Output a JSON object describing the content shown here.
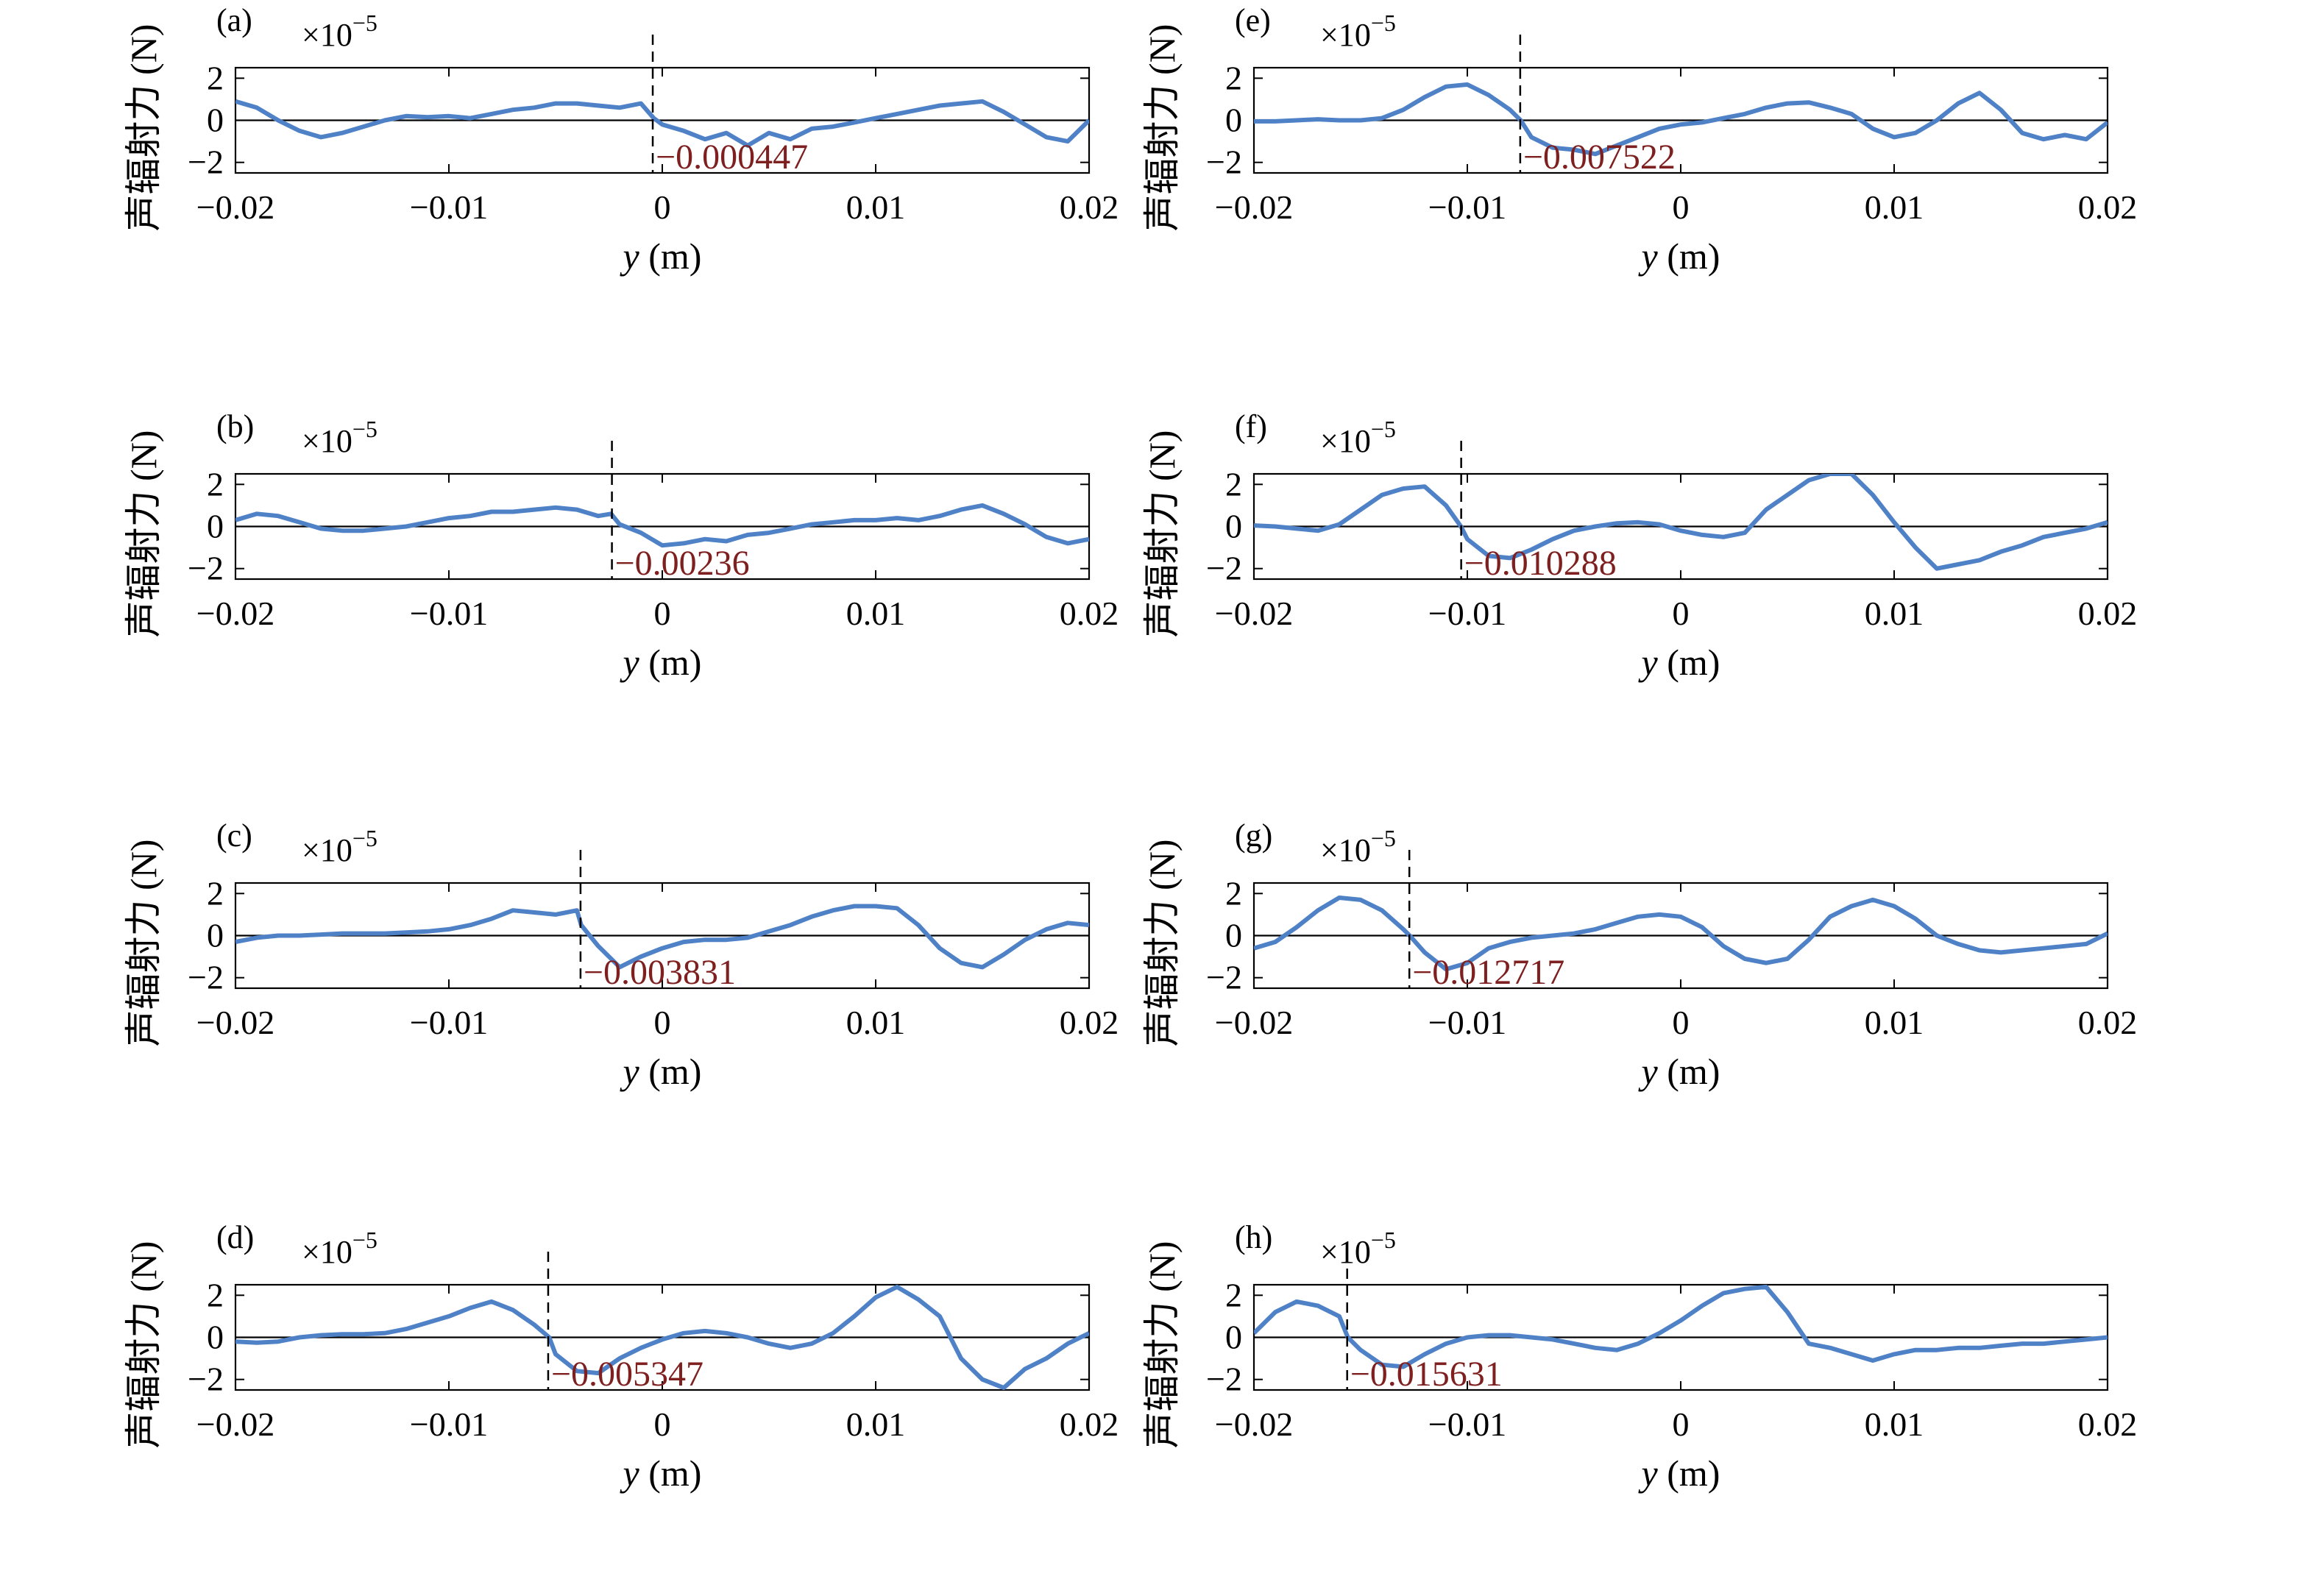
{
  "colors": {
    "series": "#4F81C7",
    "marker_label": "#7F2020",
    "axis": "#000000"
  },
  "chart_data": [
    {
      "panel": "(a)",
      "type": "line",
      "exponent": "×10",
      "exponent_power": "−5",
      "xlabel_var": "y",
      "xlabel_unit": " (m)",
      "ylabel": "声辐射力 (N)",
      "xlim": [
        -0.02,
        0.02
      ],
      "ylim": [
        -2.5,
        2.5
      ],
      "xticks": [
        "−0.02",
        "−0.01",
        "0",
        "0.01",
        "0.02"
      ],
      "yticks": [
        "−2",
        "0",
        "2"
      ],
      "marker_x": -0.000447,
      "marker_label": "−0.000447",
      "x": [
        -0.02,
        -0.019,
        -0.018,
        -0.017,
        -0.016,
        -0.015,
        -0.014,
        -0.013,
        -0.012,
        -0.011,
        -0.01,
        -0.009,
        -0.008,
        -0.007,
        -0.006,
        -0.005,
        -0.004,
        -0.003,
        -0.002,
        -0.001,
        -0.0004,
        0.0,
        0.001,
        0.002,
        0.003,
        0.004,
        0.005,
        0.006,
        0.007,
        0.008,
        0.009,
        0.01,
        0.011,
        0.012,
        0.013,
        0.014,
        0.015,
        0.016,
        0.017,
        0.018,
        0.019,
        0.02
      ],
      "y": [
        0.9,
        0.6,
        0.0,
        -0.5,
        -0.8,
        -0.6,
        -0.3,
        0.0,
        0.2,
        0.15,
        0.2,
        0.1,
        0.3,
        0.5,
        0.6,
        0.8,
        0.8,
        0.7,
        0.6,
        0.8,
        0.1,
        -0.2,
        -0.5,
        -0.9,
        -0.6,
        -1.2,
        -0.6,
        -0.9,
        -0.4,
        -0.3,
        -0.1,
        0.1,
        0.3,
        0.5,
        0.7,
        0.8,
        0.9,
        0.4,
        -0.2,
        -0.8,
        -1.0,
        0.0
      ]
    },
    {
      "panel": "(b)",
      "type": "line",
      "exponent": "×10",
      "exponent_power": "−5",
      "xlabel_var": "y",
      "xlabel_unit": " (m)",
      "ylabel": "声辐射力 (N)",
      "xlim": [
        -0.02,
        0.02
      ],
      "ylim": [
        -2.5,
        2.5
      ],
      "xticks": [
        "−0.02",
        "−0.01",
        "0",
        "0.01",
        "0.02"
      ],
      "yticks": [
        "−2",
        "0",
        "2"
      ],
      "marker_x": -0.00236,
      "marker_label": "−0.00236",
      "x": [
        -0.02,
        -0.019,
        -0.018,
        -0.017,
        -0.016,
        -0.015,
        -0.014,
        -0.013,
        -0.012,
        -0.011,
        -0.01,
        -0.009,
        -0.008,
        -0.007,
        -0.006,
        -0.005,
        -0.004,
        -0.003,
        -0.0024,
        -0.002,
        -0.001,
        0.0,
        0.001,
        0.002,
        0.003,
        0.004,
        0.005,
        0.006,
        0.007,
        0.008,
        0.009,
        0.01,
        0.011,
        0.012,
        0.013,
        0.014,
        0.015,
        0.016,
        0.017,
        0.018,
        0.019,
        0.02
      ],
      "y": [
        0.3,
        0.6,
        0.5,
        0.2,
        -0.1,
        -0.2,
        -0.2,
        -0.1,
        0.0,
        0.2,
        0.4,
        0.5,
        0.7,
        0.7,
        0.8,
        0.9,
        0.8,
        0.5,
        0.6,
        0.1,
        -0.3,
        -0.9,
        -0.8,
        -0.6,
        -0.7,
        -0.4,
        -0.3,
        -0.1,
        0.1,
        0.2,
        0.3,
        0.3,
        0.4,
        0.3,
        0.5,
        0.8,
        1.0,
        0.6,
        0.1,
        -0.5,
        -0.8,
        -0.6
      ]
    },
    {
      "panel": "(c)",
      "type": "line",
      "exponent": "×10",
      "exponent_power": "−5",
      "xlabel_var": "y",
      "xlabel_unit": " (m)",
      "ylabel": "声辐射力 (N)",
      "xlim": [
        -0.02,
        0.02
      ],
      "ylim": [
        -2.5,
        2.5
      ],
      "xticks": [
        "−0.02",
        "−0.01",
        "0",
        "0.01",
        "0.02"
      ],
      "yticks": [
        "−2",
        "0",
        "2"
      ],
      "marker_x": -0.003831,
      "marker_label": "−0.003831",
      "x": [
        -0.02,
        -0.019,
        -0.018,
        -0.017,
        -0.016,
        -0.015,
        -0.014,
        -0.013,
        -0.012,
        -0.011,
        -0.01,
        -0.009,
        -0.008,
        -0.007,
        -0.006,
        -0.005,
        -0.004,
        -0.0038,
        -0.003,
        -0.002,
        -0.001,
        0.0,
        0.001,
        0.002,
        0.003,
        0.004,
        0.005,
        0.006,
        0.007,
        0.008,
        0.009,
        0.01,
        0.011,
        0.012,
        0.013,
        0.014,
        0.015,
        0.016,
        0.017,
        0.018,
        0.019,
        0.02
      ],
      "y": [
        -0.3,
        -0.1,
        0.0,
        0.0,
        0.05,
        0.1,
        0.1,
        0.1,
        0.15,
        0.2,
        0.3,
        0.5,
        0.8,
        1.2,
        1.1,
        1.0,
        1.2,
        0.5,
        -0.5,
        -1.5,
        -1.0,
        -0.6,
        -0.3,
        -0.2,
        -0.2,
        -0.1,
        0.2,
        0.5,
        0.9,
        1.2,
        1.4,
        1.4,
        1.3,
        0.5,
        -0.6,
        -1.3,
        -1.5,
        -0.9,
        -0.2,
        0.3,
        0.6,
        0.5
      ]
    },
    {
      "panel": "(d)",
      "type": "line",
      "exponent": "×10",
      "exponent_power": "−5",
      "xlabel_var": "y",
      "xlabel_unit": " (m)",
      "ylabel": "声辐射力 (N)",
      "xlim": [
        -0.02,
        0.02
      ],
      "ylim": [
        -2.5,
        2.5
      ],
      "xticks": [
        "−0.02",
        "−0.01",
        "0",
        "0.01",
        "0.02"
      ],
      "yticks": [
        "−2",
        "0",
        "2"
      ],
      "marker_x": -0.005347,
      "marker_label": "−0.005347",
      "x": [
        -0.02,
        -0.019,
        -0.018,
        -0.017,
        -0.016,
        -0.015,
        -0.014,
        -0.013,
        -0.012,
        -0.011,
        -0.01,
        -0.009,
        -0.008,
        -0.007,
        -0.006,
        -0.0053,
        -0.005,
        -0.004,
        -0.003,
        -0.002,
        -0.001,
        0.0,
        0.001,
        0.002,
        0.003,
        0.004,
        0.005,
        0.006,
        0.007,
        0.008,
        0.009,
        0.01,
        0.011,
        0.012,
        0.013,
        0.014,
        0.015,
        0.016,
        0.017,
        0.018,
        0.019,
        0.02
      ],
      "y": [
        -0.2,
        -0.25,
        -0.2,
        0.0,
        0.1,
        0.15,
        0.15,
        0.2,
        0.4,
        0.7,
        1.0,
        1.4,
        1.7,
        1.3,
        0.6,
        0.0,
        -0.8,
        -1.6,
        -1.7,
        -1.0,
        -0.5,
        -0.1,
        0.2,
        0.3,
        0.2,
        0.0,
        -0.3,
        -0.5,
        -0.3,
        0.2,
        1.0,
        1.9,
        2.4,
        1.8,
        1.0,
        -1.0,
        -2.0,
        -2.4,
        -1.5,
        -1.0,
        -0.3,
        0.2
      ]
    },
    {
      "panel": "(e)",
      "type": "line",
      "exponent": "×10",
      "exponent_power": "−5",
      "xlabel_var": "y",
      "xlabel_unit": " (m)",
      "ylabel": "声辐射力 (N)",
      "xlim": [
        -0.02,
        0.02
      ],
      "ylim": [
        -2.5,
        2.5
      ],
      "xticks": [
        "−0.02",
        "−0.01",
        "0",
        "0.01",
        "0.02"
      ],
      "yticks": [
        "−2",
        "0",
        "2"
      ],
      "marker_x": -0.007522,
      "marker_label": "−0.007522",
      "x": [
        -0.02,
        -0.019,
        -0.018,
        -0.017,
        -0.016,
        -0.015,
        -0.014,
        -0.013,
        -0.012,
        -0.011,
        -0.01,
        -0.009,
        -0.008,
        -0.0075,
        -0.007,
        -0.006,
        -0.005,
        -0.004,
        -0.003,
        -0.002,
        -0.001,
        0.0,
        0.001,
        0.002,
        0.003,
        0.004,
        0.005,
        0.006,
        0.007,
        0.008,
        0.009,
        0.01,
        0.011,
        0.012,
        0.013,
        0.014,
        0.015,
        0.016,
        0.017,
        0.018,
        0.019,
        0.02
      ],
      "y": [
        -0.05,
        -0.05,
        0.0,
        0.05,
        0.0,
        0.0,
        0.1,
        0.5,
        1.1,
        1.6,
        1.7,
        1.2,
        0.5,
        0.0,
        -0.8,
        -1.3,
        -1.4,
        -1.6,
        -1.2,
        -0.8,
        -0.4,
        -0.2,
        -0.1,
        0.1,
        0.3,
        0.6,
        0.8,
        0.85,
        0.6,
        0.3,
        -0.4,
        -0.8,
        -0.6,
        0.0,
        0.8,
        1.3,
        0.5,
        -0.6,
        -0.9,
        -0.7,
        -0.9,
        -0.1
      ]
    },
    {
      "panel": "(f)",
      "type": "line",
      "exponent": "×10",
      "exponent_power": "−5",
      "xlabel_var": "y",
      "xlabel_unit": " (m)",
      "ylabel": "声辐射力 (N)",
      "xlim": [
        -0.02,
        0.02
      ],
      "ylim": [
        -2.5,
        2.5
      ],
      "xticks": [
        "−0.02",
        "−0.01",
        "0",
        "0.01",
        "0.02"
      ],
      "yticks": [
        "−2",
        "0",
        "2"
      ],
      "marker_x": -0.010288,
      "marker_label": "−0.010288",
      "x": [
        -0.02,
        -0.019,
        -0.018,
        -0.017,
        -0.016,
        -0.015,
        -0.014,
        -0.013,
        -0.012,
        -0.011,
        -0.0103,
        -0.01,
        -0.009,
        -0.008,
        -0.007,
        -0.006,
        -0.005,
        -0.004,
        -0.003,
        -0.002,
        -0.001,
        0.0,
        0.001,
        0.002,
        0.003,
        0.004,
        0.005,
        0.006,
        0.007,
        0.008,
        0.009,
        0.01,
        0.011,
        0.012,
        0.013,
        0.014,
        0.015,
        0.016,
        0.017,
        0.018,
        0.019,
        0.02
      ],
      "y": [
        0.05,
        0.0,
        -0.1,
        -0.2,
        0.1,
        0.8,
        1.5,
        1.8,
        1.9,
        1.0,
        0.0,
        -0.6,
        -1.4,
        -1.5,
        -1.1,
        -0.6,
        -0.2,
        0.0,
        0.15,
        0.2,
        0.1,
        -0.2,
        -0.4,
        -0.5,
        -0.3,
        0.8,
        1.5,
        2.2,
        2.5,
        2.5,
        1.5,
        0.2,
        -1.0,
        -2.0,
        -1.8,
        -1.6,
        -1.2,
        -0.9,
        -0.5,
        -0.3,
        -0.1,
        0.2
      ]
    },
    {
      "panel": "(g)",
      "type": "line",
      "exponent": "×10",
      "exponent_power": "−5",
      "xlabel_var": "y",
      "xlabel_unit": " (m)",
      "ylabel": "声辐射力 (N)",
      "xlim": [
        -0.02,
        0.02
      ],
      "ylim": [
        -2.5,
        2.5
      ],
      "xticks": [
        "−0.02",
        "−0.01",
        "0",
        "0.01",
        "0.02"
      ],
      "yticks": [
        "−2",
        "0",
        "2"
      ],
      "marker_x": -0.012717,
      "marker_label": "−0.012717",
      "x": [
        -0.02,
        -0.019,
        -0.018,
        -0.017,
        -0.016,
        -0.015,
        -0.014,
        -0.013,
        -0.0127,
        -0.012,
        -0.011,
        -0.01,
        -0.009,
        -0.008,
        -0.007,
        -0.006,
        -0.005,
        -0.004,
        -0.003,
        -0.002,
        -0.001,
        0.0,
        0.001,
        0.002,
        0.003,
        0.004,
        0.005,
        0.006,
        0.007,
        0.008,
        0.009,
        0.01,
        0.011,
        0.012,
        0.013,
        0.014,
        0.015,
        0.016,
        0.017,
        0.018,
        0.019,
        0.02
      ],
      "y": [
        -0.6,
        -0.3,
        0.4,
        1.2,
        1.8,
        1.7,
        1.2,
        0.3,
        0.0,
        -0.8,
        -1.6,
        -1.3,
        -0.6,
        -0.3,
        -0.1,
        0.0,
        0.1,
        0.3,
        0.6,
        0.9,
        1.0,
        0.9,
        0.4,
        -0.5,
        -1.1,
        -1.3,
        -1.1,
        -0.2,
        0.9,
        1.4,
        1.7,
        1.4,
        0.8,
        0.0,
        -0.4,
        -0.7,
        -0.8,
        -0.7,
        -0.6,
        -0.5,
        -0.4,
        0.1
      ]
    },
    {
      "panel": "(h)",
      "type": "line",
      "exponent": "×10",
      "exponent_power": "−5",
      "xlabel_var": "y",
      "xlabel_unit": " (m)",
      "ylabel": "声辐射力 (N)",
      "xlim": [
        -0.02,
        0.02
      ],
      "ylim": [
        -2.5,
        2.5
      ],
      "xticks": [
        "−0.02",
        "−0.01",
        "0",
        "0.01",
        "0.02"
      ],
      "yticks": [
        "−2",
        "0",
        "2"
      ],
      "marker_x": -0.015631,
      "marker_label": "−0.015631",
      "x": [
        -0.02,
        -0.019,
        -0.018,
        -0.017,
        -0.016,
        -0.0156,
        -0.015,
        -0.014,
        -0.013,
        -0.012,
        -0.011,
        -0.01,
        -0.009,
        -0.008,
        -0.007,
        -0.006,
        -0.005,
        -0.004,
        -0.003,
        -0.002,
        -0.001,
        0.0,
        0.001,
        0.002,
        0.003,
        0.004,
        0.005,
        0.006,
        0.007,
        0.008,
        0.009,
        0.01,
        0.011,
        0.012,
        0.013,
        0.014,
        0.015,
        0.016,
        0.017,
        0.018,
        0.019,
        0.02
      ],
      "y": [
        0.2,
        1.2,
        1.7,
        1.5,
        1.0,
        0.0,
        -0.6,
        -1.3,
        -1.4,
        -0.8,
        -0.3,
        0.0,
        0.1,
        0.1,
        0.0,
        -0.1,
        -0.3,
        -0.5,
        -0.6,
        -0.3,
        0.2,
        0.8,
        1.5,
        2.1,
        2.3,
        2.4,
        1.2,
        -0.3,
        -0.5,
        -0.8,
        -1.1,
        -0.8,
        -0.6,
        -0.6,
        -0.5,
        -0.5,
        -0.4,
        -0.3,
        -0.3,
        -0.2,
        -0.1,
        0.0
      ]
    }
  ]
}
